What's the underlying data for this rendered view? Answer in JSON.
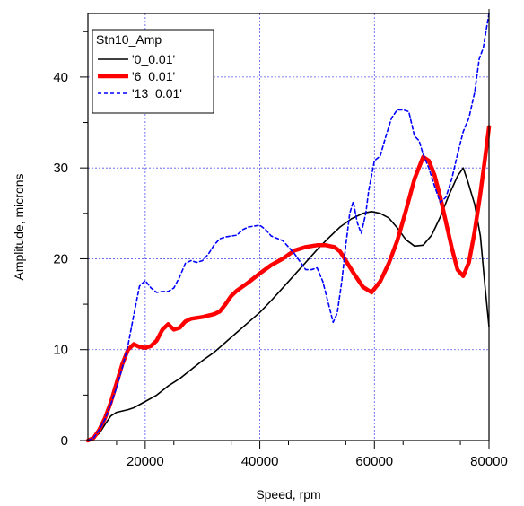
{
  "chart_data": {
    "type": "line",
    "xlabel": "Speed, rpm",
    "ylabel": "Amplitude, microns",
    "xlim": [
      10000,
      80000
    ],
    "ylim": [
      0,
      47
    ],
    "x_ticks": [
      20000,
      40000,
      60000,
      80000
    ],
    "y_ticks": [
      0,
      10,
      20,
      30,
      40
    ],
    "grid": true,
    "legend": {
      "title": "Stn10_Amp",
      "position": "top-left"
    },
    "series": [
      {
        "name": "'0_0.01'",
        "color": "#000000",
        "style": "solid",
        "weight": "thin",
        "points": [
          [
            10000,
            0
          ],
          [
            11000,
            0.3
          ],
          [
            12000,
            0.8
          ],
          [
            13000,
            1.8
          ],
          [
            14000,
            2.7
          ],
          [
            15000,
            3.1
          ],
          [
            17000,
            3.4
          ],
          [
            18000,
            3.6
          ],
          [
            20000,
            4.3
          ],
          [
            22000,
            5.0
          ],
          [
            24000,
            6.0
          ],
          [
            26000,
            6.8
          ],
          [
            28000,
            7.8
          ],
          [
            30000,
            8.8
          ],
          [
            32000,
            9.7
          ],
          [
            34000,
            10.8
          ],
          [
            36000,
            11.9
          ],
          [
            38000,
            13.0
          ],
          [
            40000,
            14.1
          ],
          [
            42000,
            15.4
          ],
          [
            44000,
            16.8
          ],
          [
            46000,
            18.2
          ],
          [
            48000,
            19.6
          ],
          [
            50000,
            21.0
          ],
          [
            52000,
            22.3
          ],
          [
            54000,
            23.5
          ],
          [
            56000,
            24.4
          ],
          [
            58000,
            25.0
          ],
          [
            59500,
            25.2
          ],
          [
            61000,
            25.0
          ],
          [
            62500,
            24.5
          ],
          [
            64000,
            23.4
          ],
          [
            65500,
            22.1
          ],
          [
            67000,
            21.4
          ],
          [
            68500,
            21.5
          ],
          [
            70000,
            22.6
          ],
          [
            71500,
            24.6
          ],
          [
            73000,
            27.0
          ],
          [
            74500,
            29.1
          ],
          [
            75500,
            30.0
          ],
          [
            76300,
            28.5
          ],
          [
            77500,
            26.0
          ],
          [
            78500,
            22.5
          ],
          [
            79300,
            17.0
          ],
          [
            80000,
            12.5
          ]
        ]
      },
      {
        "name": "'6_0.01'",
        "color": "#ff0000",
        "style": "solid",
        "weight": "thick",
        "points": [
          [
            10000,
            0
          ],
          [
            11000,
            0.3
          ],
          [
            12000,
            1.2
          ],
          [
            13000,
            2.5
          ],
          [
            14000,
            4.2
          ],
          [
            15000,
            6.3
          ],
          [
            16000,
            8.4
          ],
          [
            17000,
            10.0
          ],
          [
            18000,
            10.6
          ],
          [
            19000,
            10.3
          ],
          [
            20000,
            10.2
          ],
          [
            21000,
            10.4
          ],
          [
            22000,
            11.0
          ],
          [
            23000,
            12.2
          ],
          [
            24000,
            12.8
          ],
          [
            25000,
            12.2
          ],
          [
            26000,
            12.4
          ],
          [
            27000,
            13.1
          ],
          [
            28000,
            13.4
          ],
          [
            30000,
            13.6
          ],
          [
            32000,
            13.9
          ],
          [
            33000,
            14.2
          ],
          [
            34000,
            15.0
          ],
          [
            35000,
            15.9
          ],
          [
            36000,
            16.5
          ],
          [
            38000,
            17.4
          ],
          [
            40000,
            18.4
          ],
          [
            42000,
            19.3
          ],
          [
            44000,
            20.0
          ],
          [
            46000,
            20.9
          ],
          [
            48000,
            21.3
          ],
          [
            50000,
            21.5
          ],
          [
            51500,
            21.5
          ],
          [
            53000,
            21.3
          ],
          [
            54000,
            20.8
          ],
          [
            55000,
            19.8
          ],
          [
            56500,
            18.3
          ],
          [
            58000,
            16.9
          ],
          [
            59500,
            16.3
          ],
          [
            61000,
            17.5
          ],
          [
            62500,
            19.5
          ],
          [
            64000,
            22.0
          ],
          [
            65500,
            25.3
          ],
          [
            67000,
            28.8
          ],
          [
            68500,
            31.2
          ],
          [
            69500,
            30.8
          ],
          [
            70500,
            29.2
          ],
          [
            71500,
            26.8
          ],
          [
            72500,
            24.0
          ],
          [
            73500,
            21.2
          ],
          [
            74500,
            18.8
          ],
          [
            75500,
            18.1
          ],
          [
            76500,
            19.6
          ],
          [
            77500,
            23.0
          ],
          [
            78500,
            27.2
          ],
          [
            79300,
            31.0
          ],
          [
            80000,
            34.5
          ]
        ]
      },
      {
        "name": "'13_0.01'",
        "color": "#0000ff",
        "style": "dashed",
        "weight": "thin",
        "points": [
          [
            10000,
            0
          ],
          [
            11000,
            0.3
          ],
          [
            12000,
            1.2
          ],
          [
            13000,
            2.4
          ],
          [
            14000,
            4.0
          ],
          [
            15000,
            5.8
          ],
          [
            16000,
            8.0
          ],
          [
            17000,
            10.5
          ],
          [
            18000,
            13.8
          ],
          [
            19000,
            17.0
          ],
          [
            20000,
            17.6
          ],
          [
            21000,
            16.8
          ],
          [
            22000,
            16.3
          ],
          [
            23000,
            16.4
          ],
          [
            24000,
            16.4
          ],
          [
            25000,
            16.8
          ],
          [
            26000,
            18.0
          ],
          [
            27000,
            19.5
          ],
          [
            28000,
            19.8
          ],
          [
            29000,
            19.6
          ],
          [
            30000,
            19.8
          ],
          [
            31000,
            20.5
          ],
          [
            32000,
            21.5
          ],
          [
            33000,
            22.2
          ],
          [
            34000,
            22.4
          ],
          [
            36000,
            22.6
          ],
          [
            37000,
            23.2
          ],
          [
            38000,
            23.5
          ],
          [
            40000,
            23.7
          ],
          [
            41000,
            23.2
          ],
          [
            42000,
            22.5
          ],
          [
            44000,
            22.0
          ],
          [
            45000,
            21.3
          ],
          [
            46000,
            20.6
          ],
          [
            47000,
            19.7
          ],
          [
            48000,
            18.8
          ],
          [
            49000,
            18.8
          ],
          [
            50000,
            19.0
          ],
          [
            51000,
            17.5
          ],
          [
            52000,
            15.0
          ],
          [
            52800,
            13.0
          ],
          [
            53500,
            14.0
          ],
          [
            54300,
            17.5
          ],
          [
            55000,
            21.5
          ],
          [
            55700,
            25.0
          ],
          [
            56300,
            26.3
          ],
          [
            57000,
            24.0
          ],
          [
            57700,
            22.8
          ],
          [
            58500,
            25.0
          ],
          [
            59000,
            27.5
          ],
          [
            60000,
            30.8
          ],
          [
            61000,
            31.3
          ],
          [
            62000,
            33.5
          ],
          [
            63000,
            35.5
          ],
          [
            64000,
            36.4
          ],
          [
            65000,
            36.4
          ],
          [
            66000,
            36.2
          ],
          [
            67000,
            33.5
          ],
          [
            67800,
            33.0
          ],
          [
            68500,
            31.5
          ],
          [
            69500,
            30.0
          ],
          [
            70500,
            28.0
          ],
          [
            71500,
            26.2
          ],
          [
            72500,
            26.8
          ],
          [
            73500,
            28.8
          ],
          [
            74500,
            31.5
          ],
          [
            75500,
            34.0
          ],
          [
            76500,
            35.5
          ],
          [
            77500,
            38.3
          ],
          [
            78300,
            42.0
          ],
          [
            79000,
            43.2
          ],
          [
            79600,
            45.5
          ],
          [
            80000,
            47
          ]
        ]
      }
    ]
  }
}
